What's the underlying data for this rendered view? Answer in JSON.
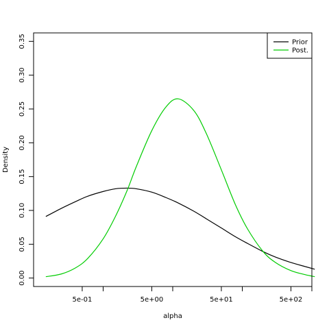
{
  "chart_data": {
    "type": "line",
    "xlabel": "alpha",
    "ylabel": "Density",
    "x_scale": "log",
    "xlim": [
      0.1,
      1000
    ],
    "ylim": [
      0,
      0.35
    ],
    "x_ticks": [
      {
        "value": 0.5,
        "label": "5e-01"
      },
      {
        "value": 5,
        "label": "5e+00"
      },
      {
        "value": 50,
        "label": "5e+01"
      },
      {
        "value": 500,
        "label": "5e+02"
      }
    ],
    "x_minor_ticks": [
      0.5,
      1,
      5,
      10,
      50,
      100,
      500,
      1000
    ],
    "y_ticks": [
      {
        "value": 0,
        "label": "0.00"
      },
      {
        "value": 0.05,
        "label": "0.05"
      },
      {
        "value": 0.1,
        "label": "0.10"
      },
      {
        "value": 0.15,
        "label": "0.15"
      },
      {
        "value": 0.2,
        "label": "0.20"
      },
      {
        "value": 0.25,
        "label": "0.25"
      },
      {
        "value": 0.3,
        "label": "0.30"
      },
      {
        "value": 0.35,
        "label": "0.35"
      }
    ],
    "grid": false,
    "legend": {
      "placement": "top-right",
      "entries": [
        {
          "label": "Prior",
          "color": "#000000"
        },
        {
          "label": "Post.",
          "color": "#00cc00"
        }
      ]
    },
    "series": [
      {
        "name": "Prior",
        "color": "#000000",
        "x": [
          0.15,
          0.25,
          0.4,
          0.6,
          1,
          1.5,
          2.2,
          3,
          5,
          8,
          12,
          20,
          30,
          50,
          80,
          120,
          200,
          300,
          500,
          800,
          1100
        ],
        "y": [
          0.091,
          0.103,
          0.113,
          0.121,
          0.128,
          0.132,
          0.133,
          0.132,
          0.127,
          0.119,
          0.111,
          0.099,
          0.088,
          0.074,
          0.061,
          0.051,
          0.039,
          0.031,
          0.023,
          0.017,
          0.013
        ]
      },
      {
        "name": "Post.",
        "color": "#00cc00",
        "x": [
          0.15,
          0.25,
          0.4,
          0.6,
          1,
          1.5,
          2.2,
          3,
          5,
          8,
          12,
          20,
          30,
          50,
          80,
          120,
          200,
          300,
          500,
          800,
          1100
        ],
        "y": [
          0.002,
          0.006,
          0.015,
          0.029,
          0.058,
          0.091,
          0.129,
          0.165,
          0.218,
          0.253,
          0.265,
          0.248,
          0.215,
          0.16,
          0.108,
          0.072,
          0.039,
          0.023,
          0.011,
          0.005,
          0.002
        ]
      }
    ]
  }
}
